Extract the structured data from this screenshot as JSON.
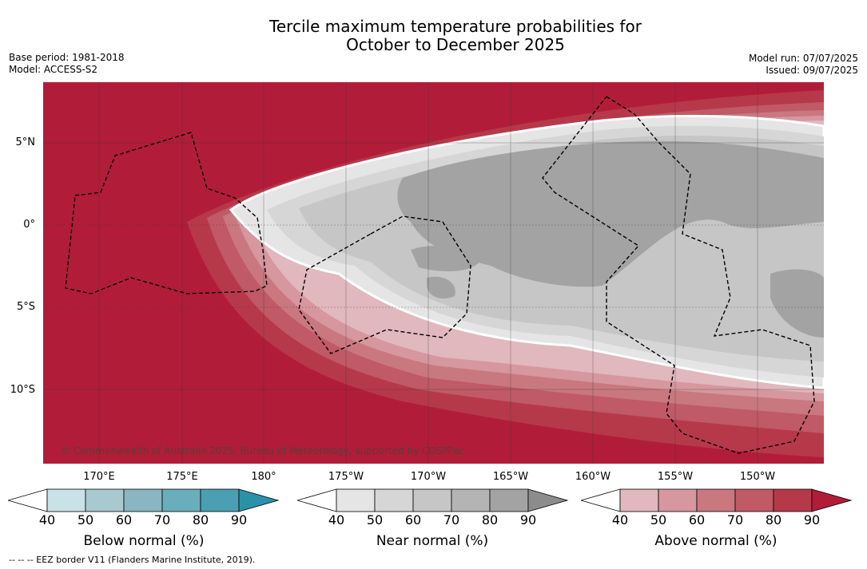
{
  "title_line1": "Tercile maximum temperature probabilities for",
  "title_line2": "October to December 2025",
  "base_period": "Base period: 1981-2018",
  "model": "Model: ACCESS-S2",
  "model_run": "Model run: 07/07/2025",
  "issued": "Issued: 09/07/2025",
  "copyright": "© Commonwealth of Australia 2025, Bureau of Meteorology, supported by COSPPac",
  "lat_labels": [
    "5°N",
    "0°",
    "5°S",
    "10°S"
  ],
  "lon_labels": [
    "170°E",
    "175°E",
    "180°",
    "175°W",
    "170°W",
    "165°W",
    "160°W",
    "155°W",
    "150°W"
  ],
  "colorbars": {
    "below": {
      "label": "Below normal (%)",
      "ticks": [
        "40",
        "50",
        "60",
        "70",
        "80",
        "90"
      ],
      "colors": [
        "#ffffff",
        "#c9e2e8",
        "#a8c9cf",
        "#89b6c0",
        "#69aebb",
        "#4aa0b2",
        "#2a92a8"
      ]
    },
    "near": {
      "label": "Near normal (%)",
      "ticks": [
        "40",
        "50",
        "60",
        "70",
        "80",
        "90"
      ],
      "colors": [
        "#ffffff",
        "#e5e5e5",
        "#d6d6d6",
        "#c6c6c6",
        "#b4b4b4",
        "#a3a3a3",
        "#8c8c8c"
      ]
    },
    "above": {
      "label": "Above normal (%)",
      "ticks": [
        "40",
        "50",
        "60",
        "70",
        "80",
        "90"
      ],
      "colors": [
        "#ffffff",
        "#e1b8bd",
        "#d6979f",
        "#c97880",
        "#bf5a66",
        "#b6394a",
        "#b11d39"
      ]
    }
  },
  "footnote": "--  --  -- EEZ border V11 (Flanders Marine Institute, 2019)."
}
